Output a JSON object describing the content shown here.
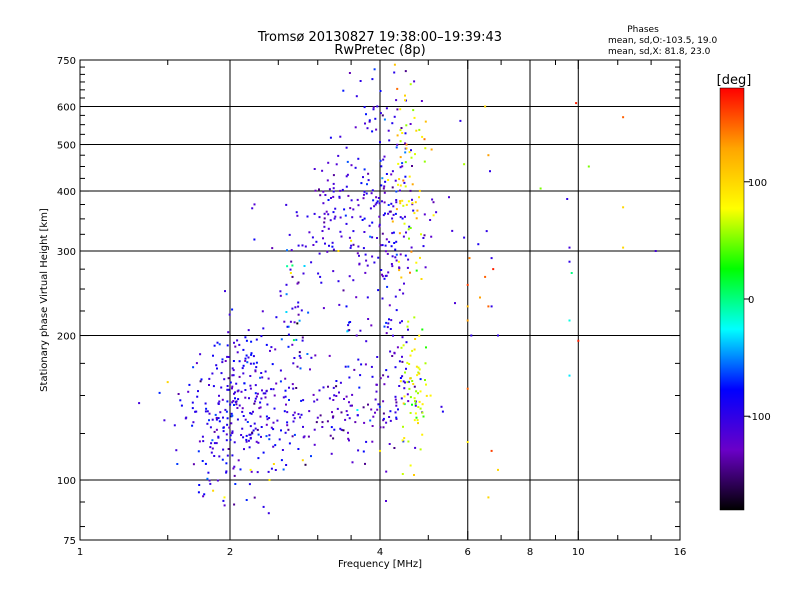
{
  "chart_data": {
    "type": "scatter",
    "title": "Tromsø 20130827 19:38:00–19:39:43",
    "subtitle": "RwPretec (8p)",
    "xlabel": "Frequency [MHz]",
    "ylabel": "Stationary phase Virtual Height [km]",
    "x_scale": "log2",
    "y_scale": "log",
    "xlim": [
      1,
      16
    ],
    "ylim": [
      75,
      750
    ],
    "x_ticks": [
      1,
      2,
      4,
      6,
      8,
      10,
      16
    ],
    "x_gridlines": [
      2,
      4,
      6,
      8,
      10
    ],
    "y_ticks": [
      75,
      100,
      200,
      300,
      400,
      500,
      600,
      750
    ],
    "y_gridlines": [
      100,
      200,
      300,
      400,
      500,
      600
    ],
    "grid": true,
    "legend": {
      "title": "Phases",
      "lines": [
        "mean, sd,O:-103.5, 19.0",
        "mean, sd,X:  81.8, 23.0"
      ],
      "placement": "top-right"
    },
    "colorbar": {
      "label": "[deg]",
      "ticks": [
        100,
        0,
        -100
      ],
      "range": [
        -180,
        180
      ],
      "palette": [
        "#ff0000",
        "#ffa500",
        "#ffff00",
        "#00ff00",
        "#00ffff",
        "#0000ff",
        "#6a00c8",
        "#000000"
      ]
    },
    "clusters": [
      {
        "cx": 3.75,
        "cy": 330,
        "sx": 0.28,
        "sy": 0.08,
        "n": 160,
        "phase": -110,
        "phase_sd": 15
      },
      {
        "cx": 4.05,
        "cy": 470,
        "sx": 0.12,
        "sy": 0.14,
        "n": 110,
        "phase": -100,
        "phase_sd": 25
      },
      {
        "cx": 3.15,
        "cy": 380,
        "sx": 0.1,
        "sy": 0.05,
        "n": 25,
        "phase": -110,
        "phase_sd": 20
      },
      {
        "cx": 4.6,
        "cy": 430,
        "sx": 0.08,
        "sy": 0.1,
        "n": 70,
        "phase": 90,
        "phase_sd": 25
      },
      {
        "cx": 2.1,
        "cy": 140,
        "sx": 0.18,
        "sy": 0.09,
        "n": 320,
        "phase": -100,
        "phase_sd": 20
      },
      {
        "cx": 2.7,
        "cy": 215,
        "sx": 0.05,
        "sy": 0.1,
        "n": 50,
        "phase": -100,
        "phase_sd": 40
      },
      {
        "cx": 3.4,
        "cy": 138,
        "sx": 0.25,
        "sy": 0.04,
        "n": 120,
        "phase": -120,
        "phase_sd": 20
      },
      {
        "cx": 4.2,
        "cy": 175,
        "sx": 0.07,
        "sy": 0.12,
        "n": 70,
        "phase": -110,
        "phase_sd": 20
      },
      {
        "cx": 3.5,
        "cy": 200,
        "sx": 0.04,
        "sy": 0.06,
        "n": 15,
        "phase": -90,
        "phase_sd": 40
      },
      {
        "cx": 4.7,
        "cy": 152,
        "sx": 0.05,
        "sy": 0.07,
        "n": 65,
        "phase": 70,
        "phase_sd": 20
      }
    ],
    "scattered": [
      [
        1.5,
        160,
        100
      ],
      [
        1.55,
        130,
        -100
      ],
      [
        1.85,
        95,
        100
      ],
      [
        1.95,
        92,
        80
      ],
      [
        2.2,
        105,
        80
      ],
      [
        2.4,
        100,
        90
      ],
      [
        2.45,
        108,
        100
      ],
      [
        2.65,
        270,
        90
      ],
      [
        2.8,
        110,
        100
      ],
      [
        3.3,
        300,
        100
      ],
      [
        3.5,
        315,
        90
      ],
      [
        4.0,
        115,
        90
      ],
      [
        5.8,
        560,
        -100
      ],
      [
        5.9,
        455,
        60
      ],
      [
        5.9,
        320,
        -100
      ],
      [
        6.0,
        230,
        120
      ],
      [
        6.05,
        290,
        140
      ],
      [
        6.0,
        255,
        160
      ],
      [
        6.0,
        215,
        130
      ],
      [
        6.1,
        200,
        -100
      ],
      [
        6.0,
        155,
        150
      ],
      [
        6.0,
        120,
        90
      ],
      [
        6.3,
        310,
        -90
      ],
      [
        6.35,
        240,
        130
      ],
      [
        6.5,
        265,
        150
      ],
      [
        6.55,
        330,
        -100
      ],
      [
        6.6,
        475,
        130
      ],
      [
        6.65,
        440,
        -100
      ],
      [
        6.6,
        230,
        150
      ],
      [
        6.7,
        290,
        -100
      ],
      [
        6.7,
        230,
        -100
      ],
      [
        6.7,
        115,
        160
      ],
      [
        6.75,
        275,
        170
      ],
      [
        6.9,
        200,
        -100
      ],
      [
        6.9,
        105,
        100
      ],
      [
        6.6,
        92,
        100
      ],
      [
        6.5,
        600,
        100
      ],
      [
        8.4,
        405,
        50
      ],
      [
        9.5,
        385,
        -100
      ],
      [
        9.6,
        305,
        -110
      ],
      [
        9.6,
        285,
        -100
      ],
      [
        9.7,
        270,
        0
      ],
      [
        9.6,
        215,
        -20
      ],
      [
        9.6,
        165,
        -30
      ],
      [
        9.9,
        610,
        170
      ],
      [
        10.0,
        195,
        170
      ],
      [
        10.5,
        450,
        50
      ],
      [
        12.3,
        570,
        150
      ],
      [
        12.3,
        370,
        100
      ],
      [
        12.3,
        305,
        100
      ],
      [
        14.3,
        300,
        -110
      ]
    ]
  }
}
